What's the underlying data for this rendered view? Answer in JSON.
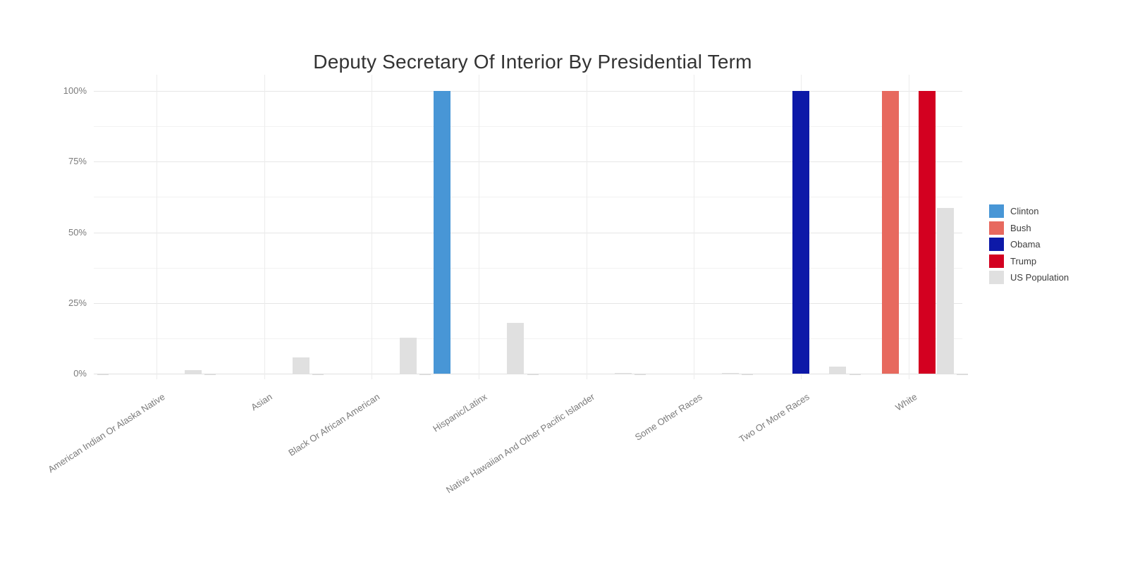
{
  "page": {
    "background": "#ffffff"
  },
  "chart_data": {
    "type": "bar",
    "bar_mode": "grouped",
    "title": "Deputy Secretary Of Interior By Presidential Term",
    "xlabel": "",
    "ylabel": "",
    "categories": [
      "American Indian Or Alaska Native",
      "Asian",
      "Black Or African American",
      "Hispanic/Latinx",
      "Native Hawaiian And Other Pacific Islander",
      "Some Other Races",
      "Two Or More Races",
      "White"
    ],
    "series": [
      {
        "name": "Clinton",
        "color": "#4896d6",
        "values": [
          0,
          0,
          0,
          100,
          0,
          0,
          0,
          0
        ]
      },
      {
        "name": "Bush",
        "color": "#e7695e",
        "values": [
          0,
          0,
          0,
          0,
          0,
          0,
          0,
          100
        ]
      },
      {
        "name": "Obama",
        "color": "#0d19a8",
        "values": [
          0,
          0,
          0,
          0,
          0,
          0,
          100,
          0
        ]
      },
      {
        "name": "Trump",
        "color": "#d30020",
        "values": [
          0,
          0,
          0,
          0,
          0,
          0,
          0,
          100
        ]
      },
      {
        "name": "US Population",
        "color": "#e0e0e0",
        "values": [
          1.2,
          5.7,
          12.8,
          18.0,
          0.2,
          0.2,
          2.5,
          58.7
        ]
      }
    ],
    "ylim": [
      0,
      100
    ],
    "yticks": [
      0,
      25,
      50,
      75,
      100
    ],
    "ytick_suffix": "%",
    "minor_grid_step": 12.5,
    "grid": true,
    "legend_position": "right",
    "x_label_rotation_deg": -33
  }
}
